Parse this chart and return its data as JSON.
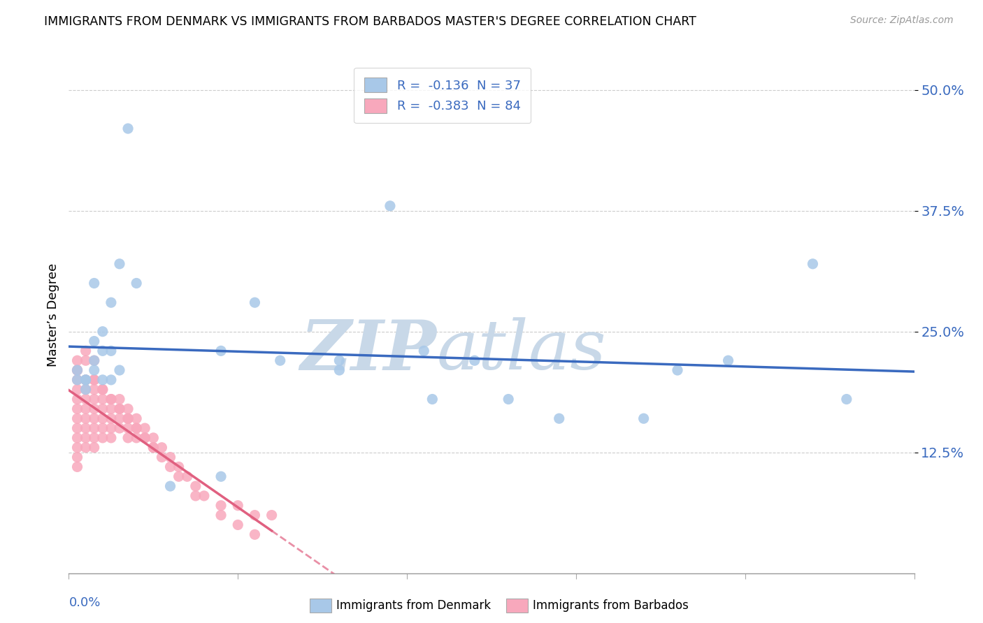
{
  "title": "IMMIGRANTS FROM DENMARK VS IMMIGRANTS FROM BARBADOS MASTER'S DEGREE CORRELATION CHART",
  "source": "Source: ZipAtlas.com",
  "ylabel": "Master’s Degree",
  "y_ticks": [
    0.125,
    0.25,
    0.375,
    0.5
  ],
  "y_tick_labels": [
    "12.5%",
    "25.0%",
    "37.5%",
    "50.0%"
  ],
  "x_min": 0.0,
  "x_max": 0.1,
  "y_min": 0.0,
  "y_max": 0.535,
  "denmark_R": -0.136,
  "denmark_N": 37,
  "barbados_R": -0.383,
  "barbados_N": 84,
  "denmark_color": "#a8c8e8",
  "barbados_color": "#f8a8bc",
  "denmark_line_color": "#3a6abf",
  "barbados_line_color": "#e06080",
  "legend_text_color": "#3a6abf",
  "watermark_zip_color": "#c8d8e8",
  "watermark_atlas_color": "#c8d8e8",
  "background_color": "#ffffff",
  "dk_x": [
    0.003,
    0.005,
    0.006,
    0.008,
    0.003,
    0.005,
    0.004,
    0.004,
    0.002,
    0.001,
    0.002,
    0.002,
    0.003,
    0.001,
    0.025,
    0.018,
    0.022,
    0.032,
    0.038,
    0.042,
    0.048,
    0.043,
    0.058,
    0.068,
    0.072,
    0.078,
    0.088,
    0.092,
    0.052,
    0.032,
    0.018,
    0.012,
    0.007,
    0.004,
    0.006,
    0.005,
    0.003
  ],
  "dk_y": [
    0.3,
    0.28,
    0.32,
    0.3,
    0.24,
    0.23,
    0.23,
    0.2,
    0.2,
    0.2,
    0.19,
    0.2,
    0.22,
    0.21,
    0.22,
    0.23,
    0.28,
    0.22,
    0.38,
    0.23,
    0.22,
    0.18,
    0.16,
    0.16,
    0.21,
    0.22,
    0.32,
    0.18,
    0.18,
    0.21,
    0.1,
    0.09,
    0.46,
    0.25,
    0.21,
    0.2,
    0.21
  ],
  "bb_x": [
    0.001,
    0.001,
    0.001,
    0.001,
    0.001,
    0.001,
    0.001,
    0.001,
    0.001,
    0.001,
    0.001,
    0.001,
    0.002,
    0.002,
    0.002,
    0.002,
    0.002,
    0.002,
    0.002,
    0.002,
    0.002,
    0.002,
    0.003,
    0.003,
    0.003,
    0.003,
    0.003,
    0.003,
    0.003,
    0.003,
    0.003,
    0.004,
    0.004,
    0.004,
    0.004,
    0.004,
    0.004,
    0.005,
    0.005,
    0.005,
    0.005,
    0.005,
    0.006,
    0.006,
    0.006,
    0.006,
    0.007,
    0.007,
    0.007,
    0.007,
    0.008,
    0.008,
    0.008,
    0.009,
    0.009,
    0.01,
    0.01,
    0.011,
    0.012,
    0.013,
    0.014,
    0.015,
    0.016,
    0.018,
    0.02,
    0.022,
    0.024,
    0.001,
    0.002,
    0.003,
    0.004,
    0.005,
    0.006,
    0.007,
    0.008,
    0.009,
    0.01,
    0.011,
    0.012,
    0.013,
    0.015,
    0.018,
    0.02,
    0.022
  ],
  "bb_y": [
    0.19,
    0.18,
    0.17,
    0.16,
    0.15,
    0.14,
    0.13,
    0.12,
    0.11,
    0.2,
    0.22,
    0.21,
    0.19,
    0.18,
    0.17,
    0.16,
    0.15,
    0.14,
    0.13,
    0.22,
    0.2,
    0.23,
    0.19,
    0.18,
    0.17,
    0.16,
    0.15,
    0.14,
    0.13,
    0.22,
    0.2,
    0.19,
    0.18,
    0.17,
    0.16,
    0.15,
    0.14,
    0.18,
    0.17,
    0.16,
    0.15,
    0.14,
    0.18,
    0.17,
    0.16,
    0.15,
    0.17,
    0.16,
    0.15,
    0.14,
    0.16,
    0.15,
    0.14,
    0.15,
    0.14,
    0.14,
    0.13,
    0.13,
    0.12,
    0.11,
    0.1,
    0.09,
    0.08,
    0.07,
    0.07,
    0.06,
    0.06,
    0.21,
    0.2,
    0.2,
    0.19,
    0.18,
    0.17,
    0.16,
    0.15,
    0.14,
    0.13,
    0.12,
    0.11,
    0.1,
    0.08,
    0.06,
    0.05,
    0.04
  ]
}
